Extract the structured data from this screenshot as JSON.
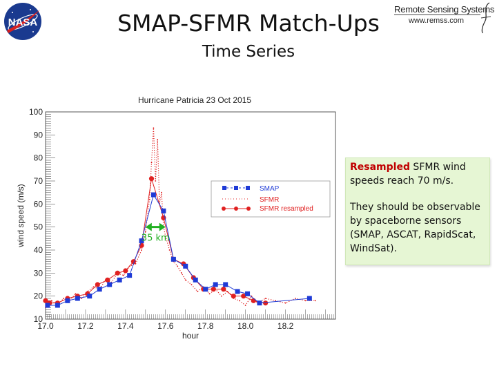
{
  "slide": {
    "title": "SMAP-SFMR Match-Ups",
    "subtitle": "Time Series"
  },
  "logos": {
    "nasa": {
      "text": "NASA",
      "icon": "nasa-meatball-logo-icon"
    },
    "rss": {
      "name": "Remote Sensing Systems",
      "url": "www.remss.com",
      "icon": "rss-swoosh-icon"
    }
  },
  "callout": {
    "highlight": "Resampled",
    "line1_rest": "  SFMR wind speeds reach 70 m/s.",
    "line2": "They should be observable by spaceborne sensors (SMAP, ASCAT, RapidScat, WindSat)."
  },
  "colors": {
    "smap": "#1f3bd6",
    "sfmr": "#e02020",
    "resampled": "#e02020",
    "annotation": "#22b022",
    "callout_bg": "#e6f6d4"
  },
  "chart_data": {
    "type": "line",
    "title": "Hurricane Patricia  23 Oct 2015",
    "xlabel": "hour",
    "ylabel": "wind speed (m/s)",
    "xlim": [
      17.0,
      18.45
    ],
    "ylim": [
      10,
      100
    ],
    "xticks": [
      17.0,
      17.2,
      17.4,
      17.6,
      17.8,
      18.0,
      18.2
    ],
    "xtick_labels": [
      "17.0",
      "17.2",
      "17.4",
      "17.6",
      "17.8",
      "18.0",
      "18.2"
    ],
    "yticks": [
      10,
      20,
      30,
      40,
      50,
      60,
      70,
      80,
      90,
      100
    ],
    "ytick_labels": [
      "10",
      "20",
      "30",
      "40",
      "50",
      "60",
      "70",
      "80",
      "90",
      "100"
    ],
    "legend_position": "upper-right",
    "annotation": {
      "text": "35 km",
      "x_from": 17.5,
      "x_to": 17.6,
      "y": 50
    },
    "series": [
      {
        "name": "SMAP",
        "style": "square-markers",
        "x": [
          17.01,
          17.06,
          17.11,
          17.16,
          17.22,
          17.27,
          17.32,
          17.37,
          17.42,
          17.48,
          17.54,
          17.59,
          17.64,
          17.7,
          17.75,
          17.8,
          17.85,
          17.9,
          17.96,
          18.01,
          18.07,
          18.32
        ],
        "y": [
          16,
          16,
          18,
          19,
          20,
          23,
          25,
          27,
          29,
          44,
          64,
          57,
          36,
          33,
          27,
          23,
          25,
          25,
          22,
          21,
          17,
          19
        ]
      },
      {
        "name": "SFMR",
        "style": "dotted",
        "x": [
          17.0,
          17.03,
          17.06,
          17.09,
          17.12,
          17.15,
          17.18,
          17.21,
          17.24,
          17.27,
          17.3,
          17.33,
          17.36,
          17.39,
          17.42,
          17.45,
          17.48,
          17.5,
          17.52,
          17.53,
          17.54,
          17.55,
          17.56,
          17.57,
          17.58,
          17.59,
          17.6,
          17.62,
          17.64,
          17.66,
          17.68,
          17.7,
          17.73,
          17.76,
          17.79,
          17.82,
          17.85,
          17.88,
          17.91,
          17.94,
          17.97,
          18.0,
          18.03,
          18.06,
          18.1,
          18.15,
          18.2,
          18.25,
          18.3,
          18.35
        ],
        "y": [
          15,
          18,
          16,
          19,
          18,
          21,
          19,
          22,
          24,
          23,
          27,
          26,
          30,
          29,
          33,
          34,
          40,
          48,
          62,
          78,
          93,
          70,
          88,
          60,
          65,
          50,
          46,
          40,
          35,
          33,
          30,
          27,
          25,
          22,
          24,
          21,
          23,
          20,
          22,
          19,
          18,
          16,
          20,
          17,
          19,
          18,
          17,
          19,
          18,
          18
        ]
      },
      {
        "name": "SFMR resampled",
        "style": "circle-markers",
        "x": [
          17.0,
          17.02,
          17.06,
          17.11,
          17.16,
          17.21,
          17.26,
          17.31,
          17.36,
          17.4,
          17.44,
          17.48,
          17.53,
          17.59,
          17.64,
          17.69,
          17.74,
          17.79,
          17.84,
          17.89,
          17.94,
          17.99,
          18.04,
          18.1
        ],
        "y": [
          18,
          17,
          17,
          19,
          20,
          21,
          25,
          27,
          30,
          31,
          35,
          42,
          71,
          54,
          36,
          34,
          28,
          23,
          23,
          23,
          20,
          20,
          18,
          17
        ]
      }
    ]
  }
}
